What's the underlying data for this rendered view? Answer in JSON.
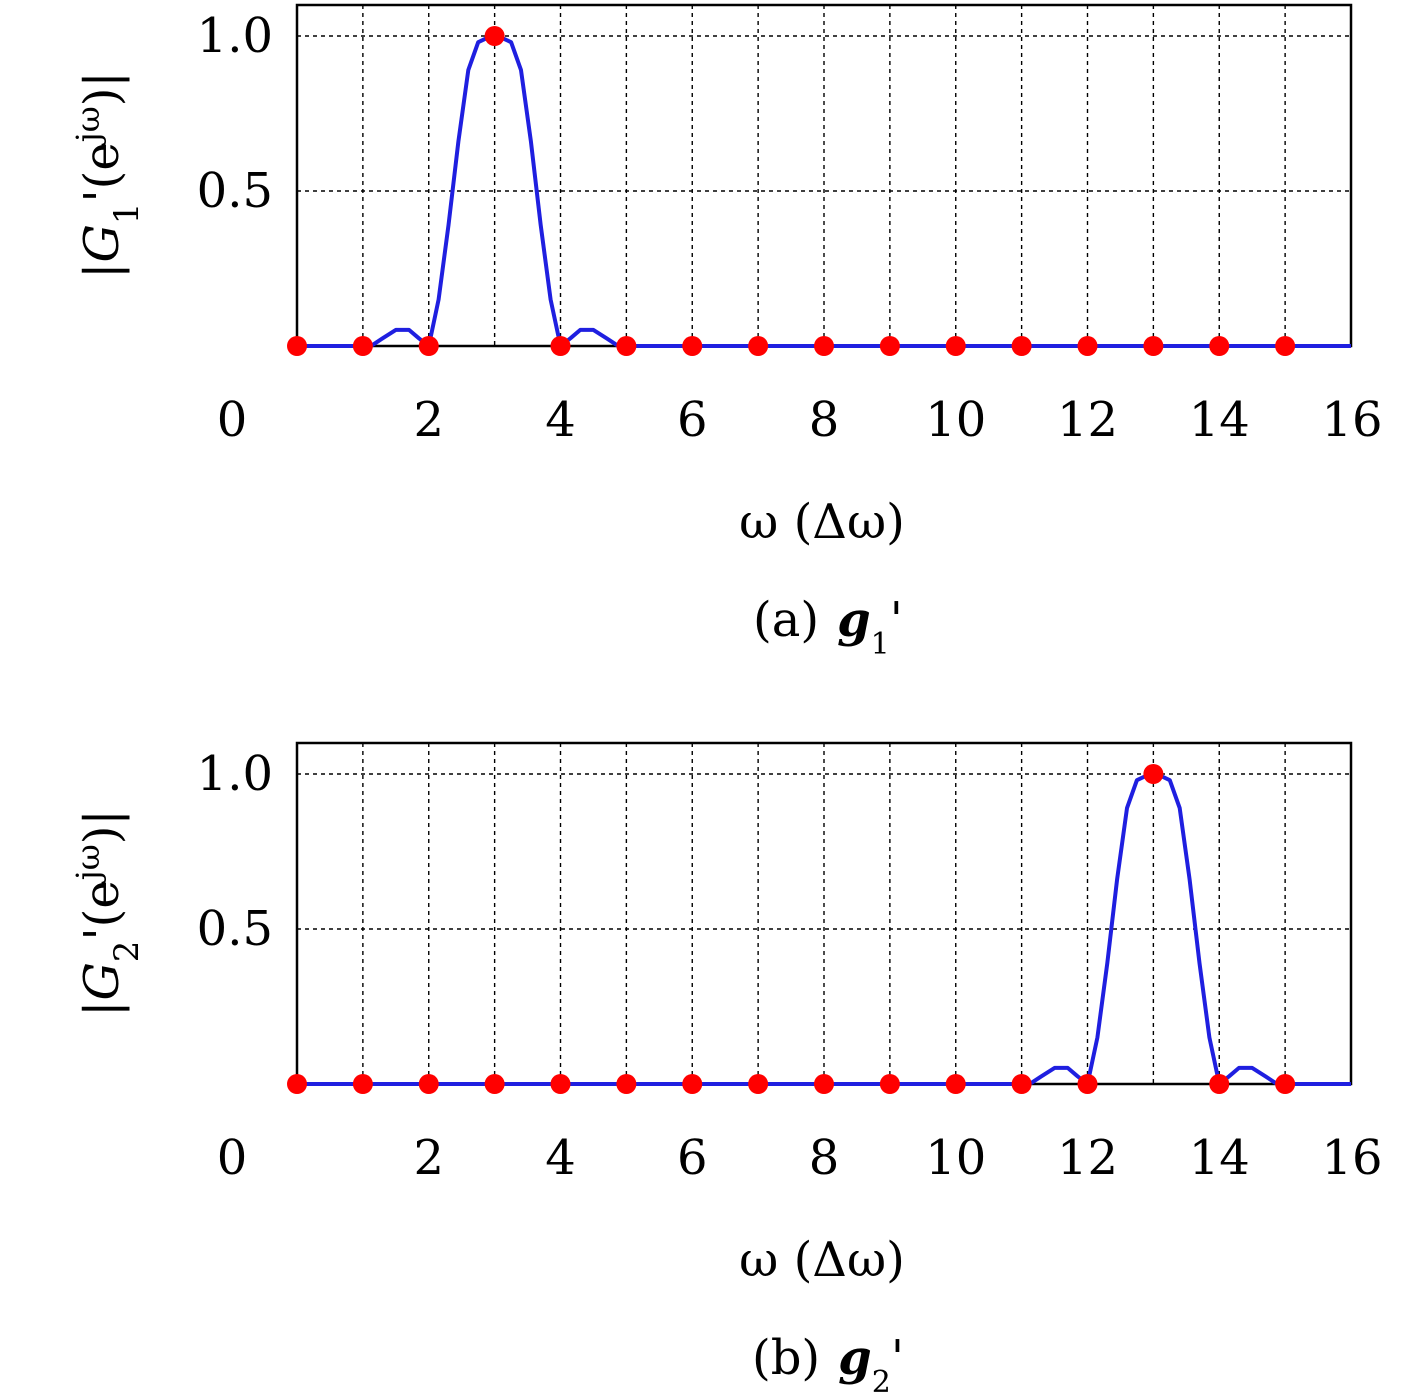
{
  "charts": [
    {
      "id": "a",
      "caption_prefix": "(a)",
      "caption_symbol": "g",
      "caption_sub": "1",
      "caption_prime": "'",
      "ylabel_symbol": "G",
      "ylabel_sub": "1",
      "ylabel_rest": "'(e",
      "ylabel_sup": "jω",
      "ylabel_close": ")",
      "xlabel": "ω (Δω)",
      "peak": 3
    },
    {
      "id": "b",
      "caption_prefix": "(b)",
      "caption_symbol": "g",
      "caption_sub": "2",
      "caption_prime": "'",
      "ylabel_symbol": "G",
      "ylabel_sub": "2",
      "ylabel_rest": "'(e",
      "ylabel_sup": "jω",
      "ylabel_close": ")",
      "xlabel": "ω (Δω)",
      "peak": 13
    }
  ],
  "chart_data": [
    {
      "type": "line",
      "xlabel": "ω (Δω)",
      "ylabel": "|G1'(e^jω)|",
      "xlim": [
        0,
        16
      ],
      "ylim": [
        0,
        1.1
      ],
      "xticks": [
        "0",
        "2",
        "4",
        "6",
        "8",
        "10",
        "12",
        "14",
        "16"
      ],
      "yticks": [
        "0.5",
        "1.0"
      ],
      "grid": true,
      "line_color": "#1f1fe0",
      "marker_color": "#ff0000",
      "series": [
        {
          "kind": "curve",
          "x": [
            0,
            1,
            1.15,
            1.3,
            1.5,
            1.7,
            1.85,
            2,
            2.15,
            2.3,
            2.45,
            2.6,
            2.75,
            2.9,
            3,
            3.1,
            3.25,
            3.4,
            3.55,
            3.7,
            3.85,
            4,
            4.15,
            4.3,
            4.5,
            4.7,
            4.85,
            5,
            16
          ],
          "y": [
            0,
            0,
            0.004,
            0.025,
            0.052,
            0.052,
            0.025,
            0,
            0.15,
            0.39,
            0.66,
            0.89,
            0.98,
            0.995,
            1.0,
            0.995,
            0.98,
            0.89,
            0.66,
            0.39,
            0.15,
            0,
            0.025,
            0.052,
            0.052,
            0.025,
            0.004,
            0,
            0
          ]
        },
        {
          "kind": "samples",
          "x": [
            0,
            1,
            2,
            3,
            4,
            5,
            6,
            7,
            8,
            9,
            10,
            11,
            12,
            13,
            14,
            15
          ],
          "y": [
            0,
            0,
            0,
            1,
            0,
            0,
            0,
            0,
            0,
            0,
            0,
            0,
            0,
            0,
            0,
            0
          ]
        }
      ]
    },
    {
      "type": "line",
      "xlabel": "ω (Δω)",
      "ylabel": "|G2'(e^jω)|",
      "xlim": [
        0,
        16
      ],
      "ylim": [
        0,
        1.1
      ],
      "xticks": [
        "0",
        "2",
        "4",
        "6",
        "8",
        "10",
        "12",
        "14",
        "16"
      ],
      "yticks": [
        "0.5",
        "1.0"
      ],
      "grid": true,
      "line_color": "#1f1fe0",
      "marker_color": "#ff0000",
      "series": [
        {
          "kind": "curve",
          "x": [
            0,
            11,
            11.15,
            11.3,
            11.5,
            11.7,
            11.85,
            12,
            12.15,
            12.3,
            12.45,
            12.6,
            12.75,
            12.9,
            13,
            13.1,
            13.25,
            13.4,
            13.55,
            13.7,
            13.85,
            14,
            14.15,
            14.3,
            14.5,
            14.7,
            14.85,
            15,
            16
          ],
          "y": [
            0,
            0,
            0.004,
            0.025,
            0.052,
            0.052,
            0.025,
            0,
            0.15,
            0.39,
            0.66,
            0.89,
            0.98,
            0.995,
            1.0,
            0.995,
            0.98,
            0.89,
            0.66,
            0.39,
            0.15,
            0,
            0.025,
            0.052,
            0.052,
            0.025,
            0.004,
            0,
            0
          ]
        },
        {
          "kind": "samples",
          "x": [
            0,
            1,
            2,
            3,
            4,
            5,
            6,
            7,
            8,
            9,
            10,
            11,
            12,
            13,
            14,
            15
          ],
          "y": [
            0,
            0,
            0,
            0,
            0,
            0,
            0,
            0,
            0,
            0,
            0,
            0,
            0,
            1,
            0,
            0
          ]
        }
      ]
    }
  ]
}
